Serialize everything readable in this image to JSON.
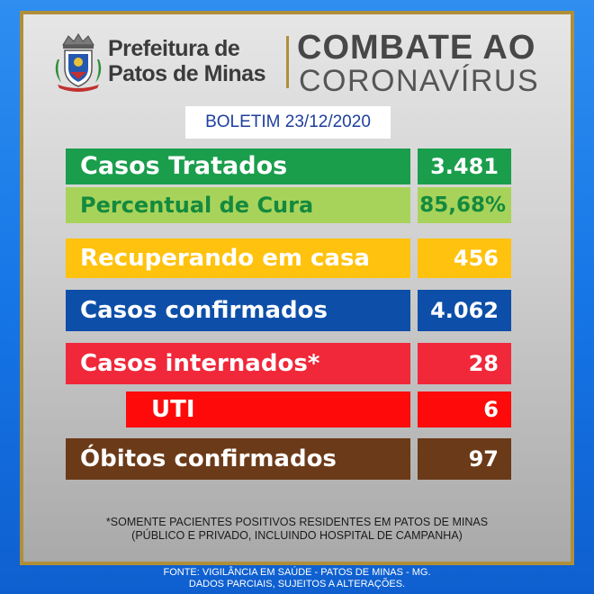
{
  "header": {
    "title_line1": "Prefeitura de",
    "title_line2": "Patos de Minas",
    "campaign_line1": "COMBATE AO",
    "campaign_line2": "CORONAVÍRUS"
  },
  "bulletin": {
    "label": "BOLETIM 23/12/2020"
  },
  "stats": {
    "casos_tratados": {
      "label": "Casos Tratados",
      "value": "3.481"
    },
    "percentual_cura": {
      "label": "Percentual de Cura",
      "value": "85,68%"
    },
    "recuperando": {
      "label": "Recuperando em casa",
      "value": "456"
    },
    "confirmados": {
      "label": "Casos confirmados",
      "value": "4.062"
    },
    "internados": {
      "label": "Casos internados*",
      "value": "28"
    },
    "uti": {
      "label": "UTI",
      "value": "6"
    },
    "obitos": {
      "label": "Óbitos confirmados",
      "value": "97"
    }
  },
  "colors": {
    "green": "#1a9e4c",
    "light_green": "#a8d35a",
    "light_green_text": "#138a3e",
    "yellow": "#ffc20e",
    "blue": "#0d4fa8",
    "red": "#f0283a",
    "bright_red": "#ff0a0a",
    "brown": "#6b3a18"
  },
  "footnote": {
    "line1": "*SOMENTE PACIENTES POSITIVOS RESIDENTES EM PATOS DE MINAS",
    "line2": "(PÚBLICO E PRIVADO, INCLUINDO HOSPITAL DE CAMPANHA)"
  },
  "source": {
    "line1": "FONTE: VIGILÂNCIA EM SAÚDE - PATOS DE MINAS - MG.",
    "line2": "DADOS PARCIAIS, SUJEITOS A ALTERAÇÕES."
  },
  "icons": {
    "crest": "municipal-coat-of-arms-icon"
  }
}
